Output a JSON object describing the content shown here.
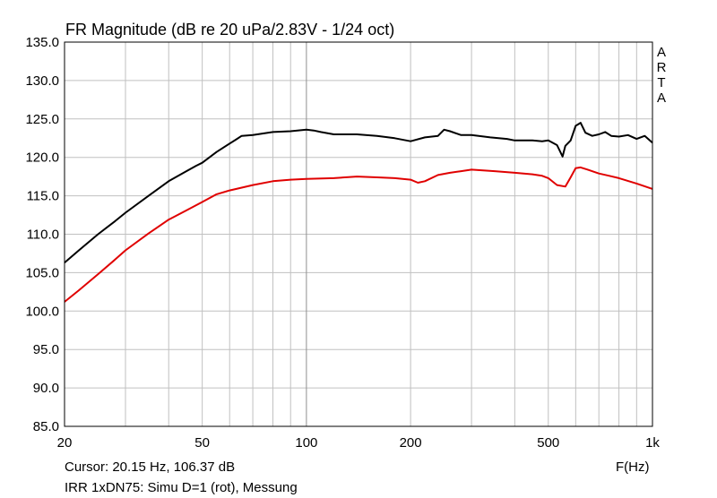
{
  "chart_data": {
    "type": "line",
    "title": "FR Magnitude (dB re 20 uPa/2.83V - 1/24 oct)",
    "xlabel": "F(Hz)",
    "ylabel": "",
    "x_scale": "log",
    "xlim": [
      20,
      1000
    ],
    "ylim": [
      85,
      135
    ],
    "grid": true,
    "y_ticks": [
      "135.0",
      "130.0",
      "125.0",
      "120.0",
      "115.0",
      "110.0",
      "105.0",
      "100.0",
      "95.0",
      "90.0",
      "85.0"
    ],
    "y_tick_values": [
      135,
      130,
      125,
      120,
      115,
      110,
      105,
      100,
      95,
      90,
      85
    ],
    "x_ticks": [
      "20",
      "50",
      "100",
      "200",
      "500",
      "1k"
    ],
    "x_tick_values": [
      20,
      50,
      100,
      200,
      500,
      1000
    ],
    "series": [
      {
        "color": "#000000",
        "x": [
          20,
          22,
          25,
          28,
          30,
          35,
          40,
          45,
          48,
          50,
          55,
          60,
          63,
          65,
          70,
          80,
          90,
          100,
          105,
          110,
          120,
          140,
          160,
          180,
          200,
          220,
          240,
          250,
          260,
          280,
          300,
          340,
          380,
          400,
          450,
          480,
          500,
          530,
          550,
          560,
          580,
          600,
          620,
          640,
          670,
          700,
          730,
          760,
          800,
          850,
          900,
          950,
          1000
        ],
        "y": [
          106.3,
          107.9,
          110.0,
          111.7,
          112.8,
          115.0,
          116.9,
          118.2,
          118.9,
          119.3,
          120.7,
          121.8,
          122.4,
          122.8,
          122.9,
          123.3,
          123.4,
          123.6,
          123.5,
          123.3,
          123.0,
          123.0,
          122.8,
          122.5,
          122.1,
          122.6,
          122.8,
          123.6,
          123.4,
          122.9,
          122.9,
          122.6,
          122.4,
          122.2,
          122.2,
          122.1,
          122.2,
          121.6,
          120.1,
          121.5,
          122.2,
          124.1,
          124.5,
          123.2,
          122.8,
          123.0,
          123.3,
          122.8,
          122.7,
          122.9,
          122.4,
          122.8,
          121.9
        ]
      },
      {
        "color": "#e00000",
        "x": [
          20,
          22,
          25,
          28,
          30,
          35,
          40,
          45,
          50,
          55,
          60,
          70,
          80,
          90,
          100,
          120,
          140,
          160,
          180,
          200,
          210,
          220,
          240,
          260,
          280,
          300,
          350,
          400,
          450,
          480,
          500,
          530,
          560,
          580,
          600,
          620,
          650,
          700,
          750,
          800,
          900,
          1000
        ],
        "y": [
          101.2,
          102.7,
          104.8,
          106.7,
          107.9,
          110.1,
          111.9,
          113.1,
          114.2,
          115.2,
          115.7,
          116.4,
          116.9,
          117.1,
          117.2,
          117.3,
          117.5,
          117.4,
          117.3,
          117.1,
          116.7,
          116.9,
          117.7,
          118.0,
          118.2,
          118.4,
          118.2,
          118.0,
          117.8,
          117.6,
          117.3,
          116.4,
          116.2,
          117.4,
          118.6,
          118.7,
          118.4,
          117.9,
          117.6,
          117.3,
          116.6,
          115.9
        ]
      }
    ]
  },
  "side_label": [
    "A",
    "R",
    "T",
    "A"
  ],
  "cursor_text": "Cursor: 20.15 Hz, 106.37 dB",
  "caption": "IRR 1xDN75: Simu D=1 (rot), Messung"
}
